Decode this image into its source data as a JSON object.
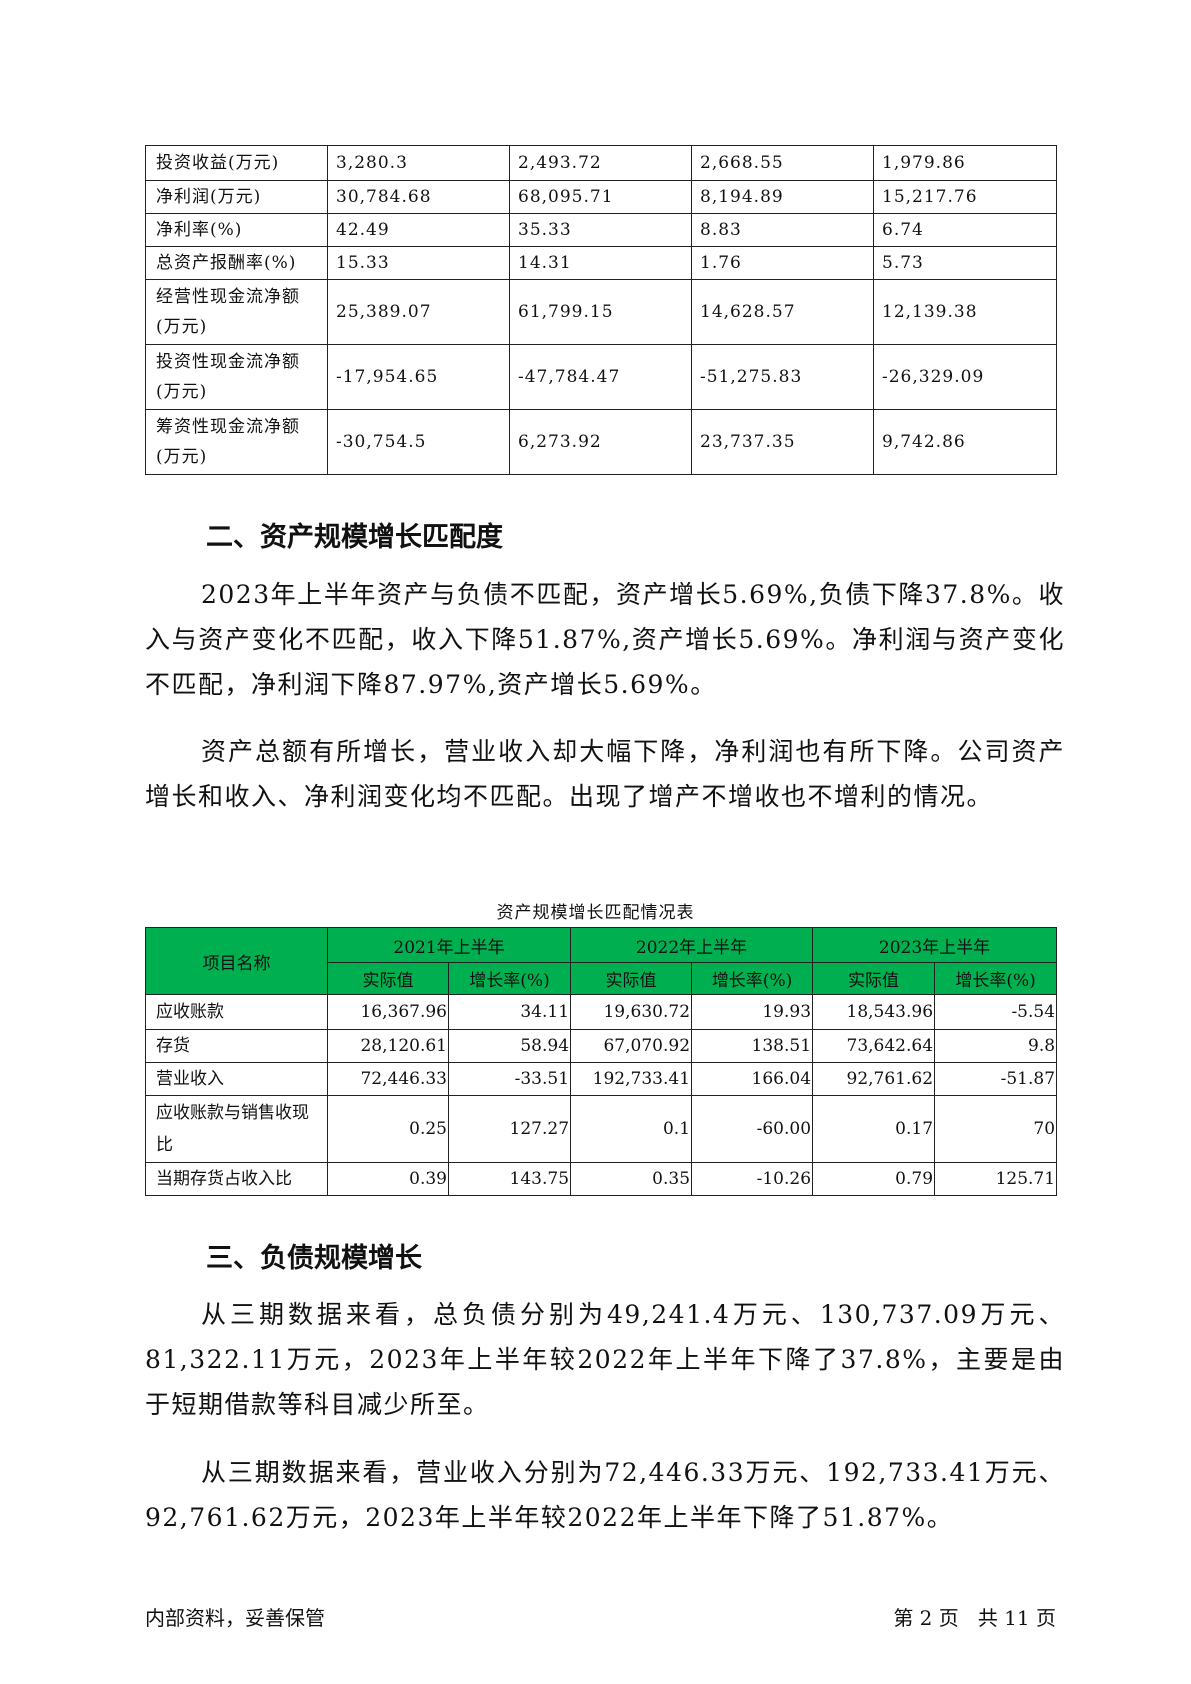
{
  "table1": {
    "rows": [
      {
        "label": "投资收益(万元)",
        "values": [
          "3,280.3",
          "2,493.72",
          "2,668.55",
          "1,979.86"
        ]
      },
      {
        "label": "净利润(万元)",
        "values": [
          "30,784.68",
          "68,095.71",
          "8,194.89",
          "15,217.76"
        ]
      },
      {
        "label": "净利率(%)",
        "values": [
          "42.49",
          "35.33",
          "8.83",
          "6.74"
        ]
      },
      {
        "label": "总资产报酬率(%)",
        "values": [
          "15.33",
          "14.31",
          "1.76",
          "5.73"
        ]
      },
      {
        "label": "经营性现金流净额(万元)",
        "values": [
          "25,389.07",
          "61,799.15",
          "14,628.57",
          "12,139.38"
        ]
      },
      {
        "label": "投资性现金流净额(万元)",
        "values": [
          "-17,954.65",
          "-47,784.47",
          "-51,275.83",
          "-26,329.09"
        ]
      },
      {
        "label": "筹资性现金流净额(万元)",
        "values": [
          "-30,754.5",
          "6,273.92",
          "23,737.35",
          "9,742.86"
        ]
      }
    ]
  },
  "section2": {
    "heading": "二、资产规模增长匹配度",
    "para1": "2023年上半年资产与负债不匹配，资产增长5.69%,负债下降37.8%。收入与资产变化不匹配，收入下降51.87%,资产增长5.69%。净利润与资产变化不匹配，净利润下降87.97%,资产增长5.69%。",
    "para2": "资产总额有所增长，营业收入却大幅下降，净利润也有所下降。公司资产增长和收入、净利润变化均不匹配。出现了增产不增收也不增利的情况。"
  },
  "table2": {
    "caption": "资产规模增长匹配情况表",
    "header_item": "项目名称",
    "periods": [
      "2021年上半年",
      "2022年上半年",
      "2023年上半年"
    ],
    "sub_actual": "实际值",
    "sub_growth": "增长率(%)",
    "header_color": "#00b050",
    "rows": [
      {
        "label": "应收账款",
        "values": [
          "16,367.96",
          "34.11",
          "19,630.72",
          "19.93",
          "18,543.96",
          "-5.54"
        ]
      },
      {
        "label": "存货",
        "values": [
          "28,120.61",
          "58.94",
          "67,070.92",
          "138.51",
          "73,642.64",
          "9.8"
        ]
      },
      {
        "label": "营业收入",
        "values": [
          "72,446.33",
          "-33.51",
          "192,733.41",
          "166.04",
          "92,761.62",
          "-51.87"
        ]
      },
      {
        "label": "应收账款与销售收现比",
        "values": [
          "0.25",
          "127.27",
          "0.1",
          "-60.00",
          "0.17",
          "70"
        ]
      },
      {
        "label": "当期存货占收入比",
        "values": [
          "0.39",
          "143.75",
          "0.35",
          "-10.26",
          "0.79",
          "125.71"
        ]
      }
    ]
  },
  "section3": {
    "heading": "三、负债规模增长",
    "para1": "从三期数据来看，总负债分别为49,241.4万元、130,737.09万元、81,322.11万元，2023年上半年较2022年上半年下降了37.8%，主要是由于短期借款等科目减少所至。",
    "para2": "从三期数据来看，营业收入分别为72,446.33万元、192,733.41万元、92,761.62万元，2023年上半年较2022年上半年下降了51.87%。"
  },
  "footer": {
    "left": "内部资料，妥善保管",
    "right": "第 2 页   共 11 页"
  }
}
